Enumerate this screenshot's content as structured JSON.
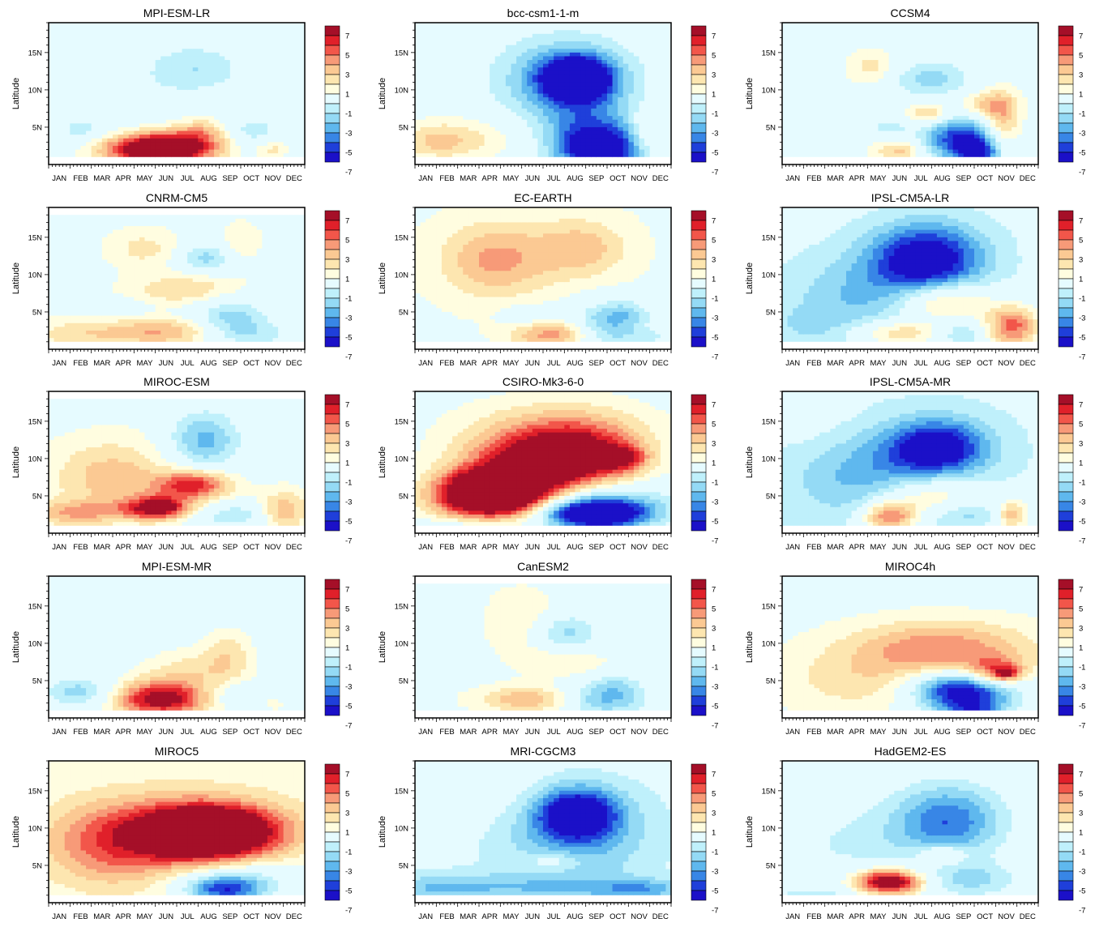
{
  "chart_data": {
    "type": "heatmap",
    "layout": {
      "rows": 5,
      "cols": 3
    },
    "months": [
      "JAN",
      "FEB",
      "MAR",
      "APR",
      "MAY",
      "JUN",
      "JUL",
      "AUG",
      "SEP",
      "OCT",
      "NOV",
      "DEC"
    ],
    "ylabel": "Latitude",
    "y_ticks": [
      "5N",
      "10N",
      "15N"
    ],
    "y_tick_values": [
      5,
      10,
      15
    ],
    "ylim": [
      0,
      19
    ],
    "colorbar": {
      "labels": [
        "7",
        "5",
        "3",
        "1",
        "-1",
        "-3",
        "-5",
        "-7"
      ],
      "colors": [
        "#a50f28",
        "#e0202a",
        "#f2564a",
        "#f79a78",
        "#fbc993",
        "#fde6b0",
        "#fffde0",
        "#e6fbff",
        "#bff0fb",
        "#94daf5",
        "#5fb8ee",
        "#3886e6",
        "#1f3fda",
        "#1b10c8"
      ]
    },
    "panels": [
      {
        "title": "MPI-ESM-LR",
        "base": 0.3,
        "top_lat": 19,
        "blobs": [
          [
            5.7,
            2.2,
            8,
            1.6,
            1.6
          ],
          [
            4.2,
            2.0,
            4,
            1.6,
            1.3
          ],
          [
            7.2,
            4.5,
            2.5,
            0.9,
            1.4
          ],
          [
            7.0,
            13.0,
            -2,
            1.5,
            2.2
          ],
          [
            1.5,
            4.5,
            -1.5,
            0.8,
            1.3
          ],
          [
            9.5,
            4.5,
            -2,
            0.9,
            1.3
          ],
          [
            10.5,
            2.0,
            2,
            0.5,
            0.8
          ],
          [
            3.5,
            10,
            -0.8,
            3,
            4
          ]
        ]
      },
      {
        "title": "bcc-csm1-1-m",
        "base": 0.2,
        "top_lat": 19,
        "blobs": [
          [
            7.6,
            11.5,
            -9,
            1.1,
            2.0
          ],
          [
            7.0,
            11.5,
            -4,
            2.3,
            4.0
          ],
          [
            8.7,
            2.0,
            -7,
            1.3,
            2.2
          ],
          [
            8.0,
            4.5,
            -3,
            1.6,
            3.5
          ],
          [
            2.0,
            3.5,
            2,
            2.2,
            2.2
          ],
          [
            11.0,
            4.5,
            2,
            0.6,
            2.0
          ],
          [
            1.0,
            3.0,
            1.5,
            1.2,
            1.5
          ]
        ]
      },
      {
        "title": "CCSM4",
        "base": 0.5,
        "top_lat": 19,
        "blobs": [
          [
            8.4,
            3.5,
            -6.5,
            1.3,
            2.0
          ],
          [
            9.2,
            1.5,
            -5,
            0.8,
            1.2
          ],
          [
            7.0,
            11.5,
            -3,
            1.4,
            1.8
          ],
          [
            6.8,
            6.8,
            3,
            0.7,
            1.0
          ],
          [
            10.3,
            5.5,
            3.5,
            0.6,
            3.0
          ],
          [
            9.5,
            8.0,
            2.5,
            0.9,
            1.2
          ],
          [
            4.2,
            13.0,
            2,
            0.8,
            1.6
          ],
          [
            5.5,
            1.8,
            3,
            0.8,
            1.0
          ],
          [
            5.0,
            5.0,
            -2,
            0.6,
            0.8
          ],
          [
            1.5,
            2.0,
            -1.5,
            1.0,
            1.2
          ]
        ]
      },
      {
        "title": "CNRM-CM5",
        "base": 0.6,
        "top_lat": 18,
        "blobs": [
          [
            5.3,
            2.3,
            3.5,
            2.0,
            1.3
          ],
          [
            6.5,
            8.0,
            2.5,
            1.8,
            1.5
          ],
          [
            7.3,
            12.2,
            -3,
            0.9,
            1.4
          ],
          [
            8.5,
            4.5,
            -3,
            1.3,
            2.0
          ],
          [
            9.5,
            2.0,
            -2,
            1.5,
            1.3
          ],
          [
            4.5,
            13.5,
            1.8,
            1.2,
            1.8
          ],
          [
            9.0,
            14.5,
            1.5,
            0.6,
            1.8
          ],
          [
            1.2,
            2.0,
            1.8,
            1.5,
            1.5
          ],
          [
            3.0,
            5.5,
            -1.2,
            1.0,
            0.8
          ]
        ]
      },
      {
        "title": "EC-EARTH",
        "base": 0.8,
        "top_lat": 19,
        "blobs": [
          [
            3.8,
            12.0,
            3.5,
            1.8,
            3.5
          ],
          [
            7.8,
            13.5,
            2.8,
            1.5,
            2.8
          ],
          [
            6.6,
            2.0,
            4,
            1.4,
            1.3
          ],
          [
            9.0,
            3.0,
            -4,
            1.3,
            2.3
          ],
          [
            5.2,
            4.5,
            -1.5,
            0.8,
            1.0
          ],
          [
            10.0,
            5.0,
            -1.5,
            0.8,
            1.2
          ],
          [
            11.0,
            1.5,
            -1.5,
            0.6,
            0.8
          ],
          [
            1.0,
            1.0,
            -1.2,
            1.2,
            0.6
          ]
        ]
      },
      {
        "title": "IPSL-CM5A-LR",
        "base": -0.6,
        "top_lat": 19,
        "blobs": [
          [
            6.8,
            12.2,
            -7,
            1.8,
            3.2
          ],
          [
            4.0,
            7.0,
            -2.5,
            2.5,
            4.0
          ],
          [
            7.5,
            6.5,
            4.5,
            1.6,
            1.8
          ],
          [
            10.8,
            3.0,
            6,
            0.9,
            2.0
          ],
          [
            5.5,
            2.2,
            4,
            1.5,
            1.3
          ],
          [
            8.5,
            2.0,
            -2,
            0.7,
            1.0
          ],
          [
            1.0,
            3.0,
            -1,
            1.5,
            2.0
          ]
        ]
      },
      {
        "title": "MIROC-ESM",
        "base": 0.6,
        "top_lat": 18,
        "blobs": [
          [
            6.8,
            6.5,
            6,
            1.2,
            1.3
          ],
          [
            5.2,
            3.5,
            6,
            1.0,
            1.1
          ],
          [
            3.0,
            7.5,
            3,
            2.0,
            3.5
          ],
          [
            7.3,
            12.5,
            -4,
            1.2,
            2.8
          ],
          [
            8.5,
            2.5,
            -3,
            1.5,
            1.2
          ],
          [
            11.0,
            3.0,
            3.5,
            0.8,
            1.8
          ],
          [
            4.0,
            3.0,
            2,
            3.0,
            1.0
          ],
          [
            1.0,
            2.5,
            2,
            1.2,
            1.2
          ]
        ]
      },
      {
        "title": "CSIRO-Mk3-6-0",
        "base": 0.5,
        "top_lat": 19,
        "blobs": [
          [
            3.7,
            5.5,
            12,
            1.7,
            2.0
          ],
          [
            5.2,
            8.8,
            6,
            2.2,
            3.2
          ],
          [
            7.8,
            10.5,
            6,
            2.0,
            3.0
          ],
          [
            9.8,
            10.0,
            4,
            0.7,
            1.2
          ],
          [
            8.5,
            2.5,
            -9,
            1.6,
            1.3
          ],
          [
            8.5,
            4.0,
            -4,
            2.5,
            2.0
          ],
          [
            3.0,
            3.5,
            2,
            2.0,
            2.0
          ],
          [
            2.0,
            1.0,
            -1.5,
            2.0,
            0.8
          ],
          [
            6.5,
            14.0,
            2,
            3.0,
            3.0
          ]
        ]
      },
      {
        "title": "IPSL-CM5A-MR",
        "base": -0.8,
        "top_lat": 19,
        "blobs": [
          [
            7.3,
            11.5,
            -6.5,
            1.6,
            2.6
          ],
          [
            4.5,
            7.5,
            -3,
            2.6,
            4.0
          ],
          [
            6.8,
            5.0,
            4,
            1.7,
            2.2
          ],
          [
            5.0,
            2.2,
            6,
            0.9,
            1.4
          ],
          [
            10.8,
            2.5,
            4.5,
            0.6,
            1.5
          ],
          [
            8.5,
            2.5,
            -2,
            1.2,
            1.2
          ],
          [
            1.0,
            16.0,
            0.8,
            1.5,
            3.0
          ]
        ]
      },
      {
        "title": "MPI-ESM-MR",
        "base": 0.3,
        "top_lat": 19,
        "blobs": [
          [
            5.3,
            2.5,
            7.5,
            1.6,
            1.6
          ],
          [
            6.5,
            6.0,
            2.2,
            1.8,
            2.5
          ],
          [
            8.4,
            8.5,
            2,
            0.8,
            2.5
          ],
          [
            1.5,
            3.5,
            -3,
            1.2,
            1.3
          ],
          [
            8.5,
            3.0,
            -1.8,
            1.5,
            1.3
          ],
          [
            10.5,
            2.0,
            1.5,
            0.5,
            0.8
          ],
          [
            3.5,
            12.0,
            -0.8,
            2.0,
            3.0
          ]
        ]
      },
      {
        "title": "CanESM2",
        "base": 0.5,
        "top_lat": 18,
        "blobs": [
          [
            5.5,
            2.5,
            3.5,
            1.8,
            1.3
          ],
          [
            7.0,
            11.5,
            -3,
            1.2,
            1.8
          ],
          [
            8.7,
            2.5,
            -4,
            1.5,
            1.6
          ],
          [
            9.5,
            4.5,
            -1.5,
            0.8,
            1.2
          ],
          [
            5.0,
            13.0,
            1.8,
            1.2,
            3.0
          ],
          [
            7.0,
            7.5,
            1.5,
            1.5,
            1.5
          ],
          [
            1.0,
            14.0,
            -1.0,
            1.0,
            2.0
          ]
        ]
      },
      {
        "title": "MIROC4h",
        "base": 0.6,
        "top_lat": 19,
        "blobs": [
          [
            7.5,
            9.5,
            4,
            3.0,
            2.5
          ],
          [
            10.0,
            6.0,
            5,
            1.0,
            1.5
          ],
          [
            10.5,
            6.0,
            4,
            0.4,
            0.6
          ],
          [
            8.5,
            2.8,
            -6,
            1.6,
            1.8
          ],
          [
            8.5,
            4.5,
            -4,
            1.8,
            1.5
          ],
          [
            9.0,
            1.0,
            -3,
            1.0,
            0.8
          ],
          [
            4.0,
            5.0,
            2,
            3.0,
            3.0
          ]
        ]
      },
      {
        "title": "MIROC5",
        "base": 1.0,
        "top_lat": 19,
        "blobs": [
          [
            7.5,
            9.5,
            10,
            2.0,
            2.2
          ],
          [
            6.5,
            9.0,
            5,
            3.5,
            4.0
          ],
          [
            8.2,
            1.8,
            -6,
            1.3,
            1.3
          ],
          [
            9.0,
            3.5,
            -3,
            2.3,
            2.0
          ],
          [
            2.5,
            7.5,
            2.5,
            2.0,
            4.0
          ]
        ]
      },
      {
        "title": "MRI-CGCM3",
        "base": -0.5,
        "top_lat": 19,
        "blobs": [
          [
            7.6,
            12.0,
            -7,
            1.3,
            2.3
          ],
          [
            7.5,
            9.0,
            -3,
            2.5,
            4.5
          ],
          [
            4.5,
            2.0,
            -2,
            3.5,
            1.5
          ],
          [
            1.0,
            2.0,
            -1.5,
            1.5,
            1.2
          ],
          [
            10.5,
            1.8,
            -3,
            1.5,
            1.0
          ],
          [
            6.5,
            5.5,
            2,
            0.9,
            1.0
          ],
          [
            3.0,
            14.5,
            1.0,
            3.0,
            3.0
          ]
        ]
      },
      {
        "title": "HadGEM2-ES",
        "base": 0.4,
        "top_lat": 19,
        "blobs": [
          [
            5.0,
            2.8,
            9,
            1.1,
            1.2
          ],
          [
            7.5,
            6.5,
            3,
            0.8,
            1.0
          ],
          [
            7.8,
            11.0,
            -5,
            1.8,
            3.5
          ],
          [
            9.0,
            3.0,
            -2.5,
            1.5,
            1.6
          ],
          [
            3.5,
            8.0,
            -1.5,
            3.0,
            4.0
          ],
          [
            1.5,
            1.0,
            -1.5,
            2.0,
            0.8
          ]
        ]
      }
    ]
  }
}
